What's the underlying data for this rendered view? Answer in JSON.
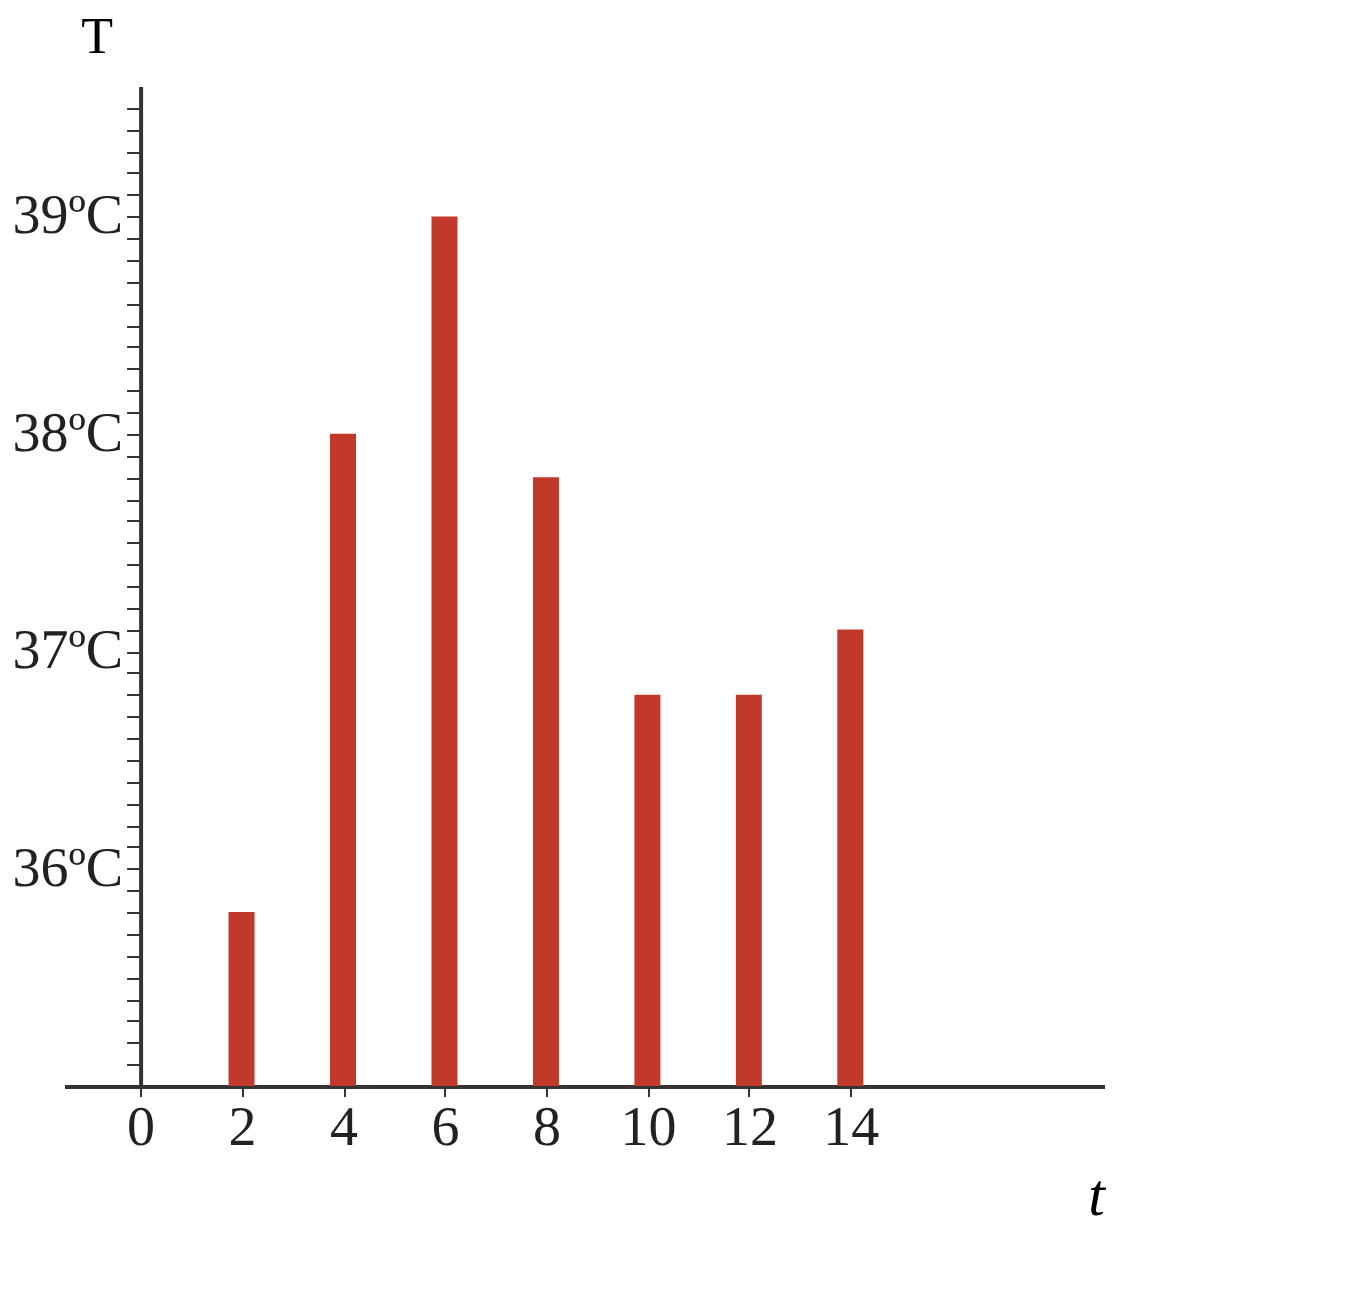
{
  "chart_data": {
    "type": "bar",
    "xlabel": "t",
    "ylabel": "T",
    "x": [
      2,
      4,
      6,
      8,
      10,
      12,
      14
    ],
    "values": [
      35.8,
      38.0,
      39.0,
      37.8,
      36.8,
      36.8,
      37.1
    ],
    "color": "#c0392b",
    "xlim": [
      -1.5,
      19
    ],
    "xticks": [
      0,
      2,
      4,
      6,
      8,
      10,
      12,
      14
    ],
    "ylim": [
      35,
      39.6
    ],
    "yticks": [
      {
        "value": 35.1,
        "label": null
      },
      {
        "value": 35.2,
        "label": null
      },
      {
        "value": 35.3,
        "label": null
      },
      {
        "value": 35.4,
        "label": null
      },
      {
        "value": 35.5,
        "label": null
      },
      {
        "value": 35.6,
        "label": null
      },
      {
        "value": 35.7,
        "label": null
      },
      {
        "value": 35.8,
        "label": null
      },
      {
        "value": 35.9,
        "label": null
      },
      {
        "value": 36,
        "label": "36ºC"
      },
      {
        "value": 36.1,
        "label": null
      },
      {
        "value": 36.2,
        "label": null
      },
      {
        "value": 36.3,
        "label": null
      },
      {
        "value": 36.4,
        "label": null
      },
      {
        "value": 36.5,
        "label": null
      },
      {
        "value": 36.6,
        "label": null
      },
      {
        "value": 36.7,
        "label": null
      },
      {
        "value": 36.8,
        "label": null
      },
      {
        "value": 36.9,
        "label": null
      },
      {
        "value": 37,
        "label": "37ºC"
      },
      {
        "value": 37.1,
        "label": null
      },
      {
        "value": 37.2,
        "label": null
      },
      {
        "value": 37.3,
        "label": null
      },
      {
        "value": 37.4,
        "label": null
      },
      {
        "value": 37.5,
        "label": null
      },
      {
        "value": 37.6,
        "label": null
      },
      {
        "value": 37.7,
        "label": null
      },
      {
        "value": 37.8,
        "label": null
      },
      {
        "value": 37.9,
        "label": null
      },
      {
        "value": 38,
        "label": "38ºC"
      },
      {
        "value": 38.1,
        "label": null
      },
      {
        "value": 38.2,
        "label": null
      },
      {
        "value": 38.3,
        "label": null
      },
      {
        "value": 38.4,
        "label": null
      },
      {
        "value": 38.5,
        "label": null
      },
      {
        "value": 38.6,
        "label": null
      },
      {
        "value": 38.7,
        "label": null
      },
      {
        "value": 38.8,
        "label": null
      },
      {
        "value": 38.9,
        "label": null
      },
      {
        "value": 39,
        "label": "39ºC"
      },
      {
        "value": 39.1,
        "label": null
      },
      {
        "value": 39.2,
        "label": null
      },
      {
        "value": 39.3,
        "label": null
      },
      {
        "value": 39.4,
        "label": null
      },
      {
        "value": 39.5,
        "label": null
      }
    ],
    "grid": false
  }
}
